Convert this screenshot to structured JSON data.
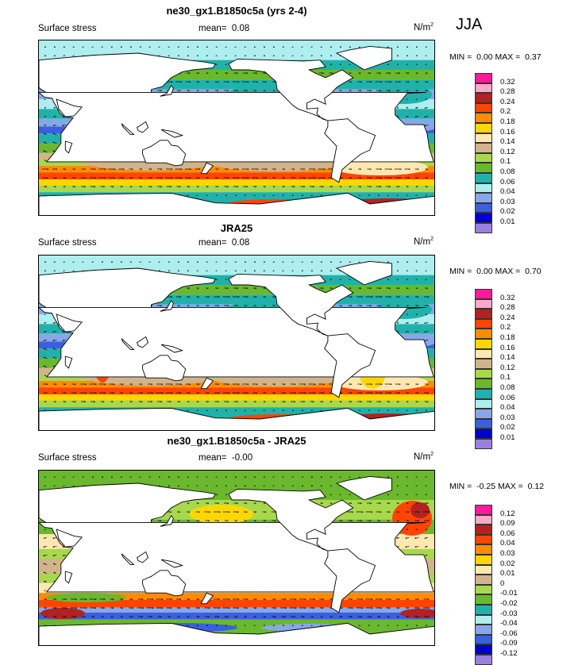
{
  "season": "JJA",
  "panels": [
    {
      "title": "ne30_gx1.B1850c5a (yrs 2-4)",
      "variable": "Surface stress",
      "mean_label": "mean=",
      "mean": "0.08",
      "units": "N/m",
      "units_sup": "2",
      "min_label": "MIN =",
      "min": "0.00",
      "max_label": "MAX =",
      "max": "0.37",
      "levels": [
        "0.32",
        "0.28",
        "0.24",
        "0.2",
        "0.18",
        "0.16",
        "0.14",
        "0.12",
        "0.1",
        "0.08",
        "0.06",
        "0.04",
        "0.03",
        "0.02",
        "0.01"
      ]
    },
    {
      "title": "JRA25",
      "variable": "Surface stress",
      "mean_label": "mean=",
      "mean": "0.08",
      "units": "N/m",
      "units_sup": "2",
      "min_label": "MIN =",
      "min": "0.00",
      "max_label": "MAX =",
      "max": "0.70",
      "levels": [
        "0.32",
        "0.28",
        "0.24",
        "0.2",
        "0.18",
        "0.16",
        "0.14",
        "0.12",
        "0.1",
        "0.08",
        "0.06",
        "0.04",
        "0.03",
        "0.02",
        "0.01"
      ]
    },
    {
      "title": "ne30_gx1.B1850c5a - JRA25",
      "variable": "Surface stress",
      "mean_label": "mean=",
      "mean": "-0.00",
      "units": "N/m",
      "units_sup": "2",
      "min_label": "MIN =",
      "min": "-0.25",
      "max_label": "MAX =",
      "max": "0.12",
      "levels": [
        "0.12",
        "0.09",
        "0.06",
        "0.04",
        "0.03",
        "0.02",
        "0.01",
        "0",
        "-0.01",
        "-0.02",
        "-0.03",
        "-0.04",
        "-0.06",
        "-0.09",
        "-0.12"
      ]
    }
  ],
  "colors": {
    "scale": [
      "#ff1a9c",
      "#ffa8c8",
      "#b22222",
      "#ff4500",
      "#ff8c00",
      "#ffd700",
      "#ffe8b0",
      "#d2b48c",
      "#a8d84c",
      "#6ab82e",
      "#20b2aa",
      "#afeeee",
      "#87a8e8",
      "#3a5fe0",
      "#0000cd",
      "#9b7fe0"
    ]
  },
  "chart_data": [
    {
      "type": "heatmap",
      "title": "ne30_gx1.B1850c5a (yrs 2-4)",
      "subtitle": "Surface stress",
      "units": "N/m2",
      "mean": 0.08,
      "min": 0.0,
      "max": 0.37,
      "levels": [
        0.01,
        0.02,
        0.03,
        0.04,
        0.06,
        0.08,
        0.1,
        0.12,
        0.14,
        0.16,
        0.18,
        0.2,
        0.24,
        0.28,
        0.32
      ],
      "grid": false,
      "legend": "right"
    },
    {
      "type": "heatmap",
      "title": "JRA25",
      "subtitle": "Surface stress",
      "units": "N/m2",
      "mean": 0.08,
      "min": 0.0,
      "max": 0.7,
      "levels": [
        0.01,
        0.02,
        0.03,
        0.04,
        0.06,
        0.08,
        0.1,
        0.12,
        0.14,
        0.16,
        0.18,
        0.2,
        0.24,
        0.28,
        0.32
      ],
      "grid": false,
      "legend": "right"
    },
    {
      "type": "heatmap",
      "title": "ne30_gx1.B1850c5a - JRA25",
      "subtitle": "Surface stress",
      "units": "N/m2",
      "mean": -0.0,
      "min": -0.25,
      "max": 0.12,
      "levels": [
        -0.12,
        -0.09,
        -0.06,
        -0.04,
        -0.03,
        -0.02,
        -0.01,
        0,
        0.01,
        0.02,
        0.03,
        0.04,
        0.06,
        0.09,
        0.12
      ],
      "grid": false,
      "legend": "right"
    }
  ]
}
